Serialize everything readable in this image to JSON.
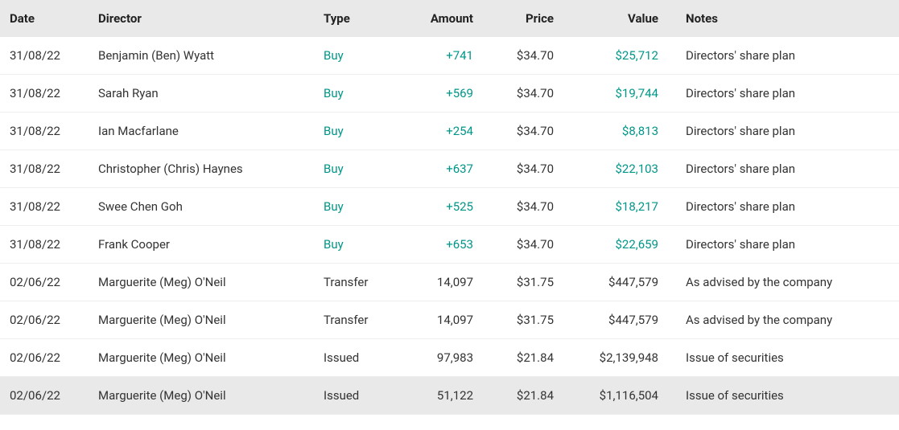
{
  "columns": [
    "Date",
    "Director",
    "Type",
    "Amount",
    "Price",
    "Value",
    "Notes"
  ],
  "emph_color": "#009688",
  "header_bg": "#e9e9e9",
  "row_border": "#eeeeee",
  "rows": [
    {
      "date": "31/08/22",
      "director": "Benjamin (Ben) Wyatt",
      "type": "Buy",
      "emph": true,
      "amount": "+741",
      "price": "$34.70",
      "value": "$25,712",
      "notes": "Directors' share plan"
    },
    {
      "date": "31/08/22",
      "director": "Sarah Ryan",
      "type": "Buy",
      "emph": true,
      "amount": "+569",
      "price": "$34.70",
      "value": "$19,744",
      "notes": "Directors' share plan"
    },
    {
      "date": "31/08/22",
      "director": "Ian Macfarlane",
      "type": "Buy",
      "emph": true,
      "amount": "+254",
      "price": "$34.70",
      "value": "$8,813",
      "notes": "Directors' share plan"
    },
    {
      "date": "31/08/22",
      "director": "Christopher (Chris) Haynes",
      "type": "Buy",
      "emph": true,
      "amount": "+637",
      "price": "$34.70",
      "value": "$22,103",
      "notes": "Directors' share plan"
    },
    {
      "date": "31/08/22",
      "director": "Swee Chen Goh",
      "type": "Buy",
      "emph": true,
      "amount": "+525",
      "price": "$34.70",
      "value": "$18,217",
      "notes": "Directors' share plan"
    },
    {
      "date": "31/08/22",
      "director": "Frank Cooper",
      "type": "Buy",
      "emph": true,
      "amount": "+653",
      "price": "$34.70",
      "value": "$22,659",
      "notes": "Directors' share plan"
    },
    {
      "date": "02/06/22",
      "director": "Marguerite (Meg) O'Neil",
      "type": "Transfer",
      "emph": false,
      "amount": "14,097",
      "price": "$31.75",
      "value": "$447,579",
      "notes": "As advised by the company"
    },
    {
      "date": "02/06/22",
      "director": "Marguerite (Meg) O'Neil",
      "type": "Transfer",
      "emph": false,
      "amount": "14,097",
      "price": "$31.75",
      "value": "$447,579",
      "notes": "As advised by the company"
    },
    {
      "date": "02/06/22",
      "director": "Marguerite (Meg) O'Neil",
      "type": "Issued",
      "emph": false,
      "amount": "97,983",
      "price": "$21.84",
      "value": "$2,139,948",
      "notes": "Issue of securities"
    },
    {
      "date": "02/06/22",
      "director": "Marguerite (Meg) O'Neil",
      "type": "Issued",
      "emph": false,
      "amount": "51,122",
      "price": "$21.84",
      "value": "$1,116,504",
      "notes": "Issue of securities",
      "hover": true
    }
  ]
}
